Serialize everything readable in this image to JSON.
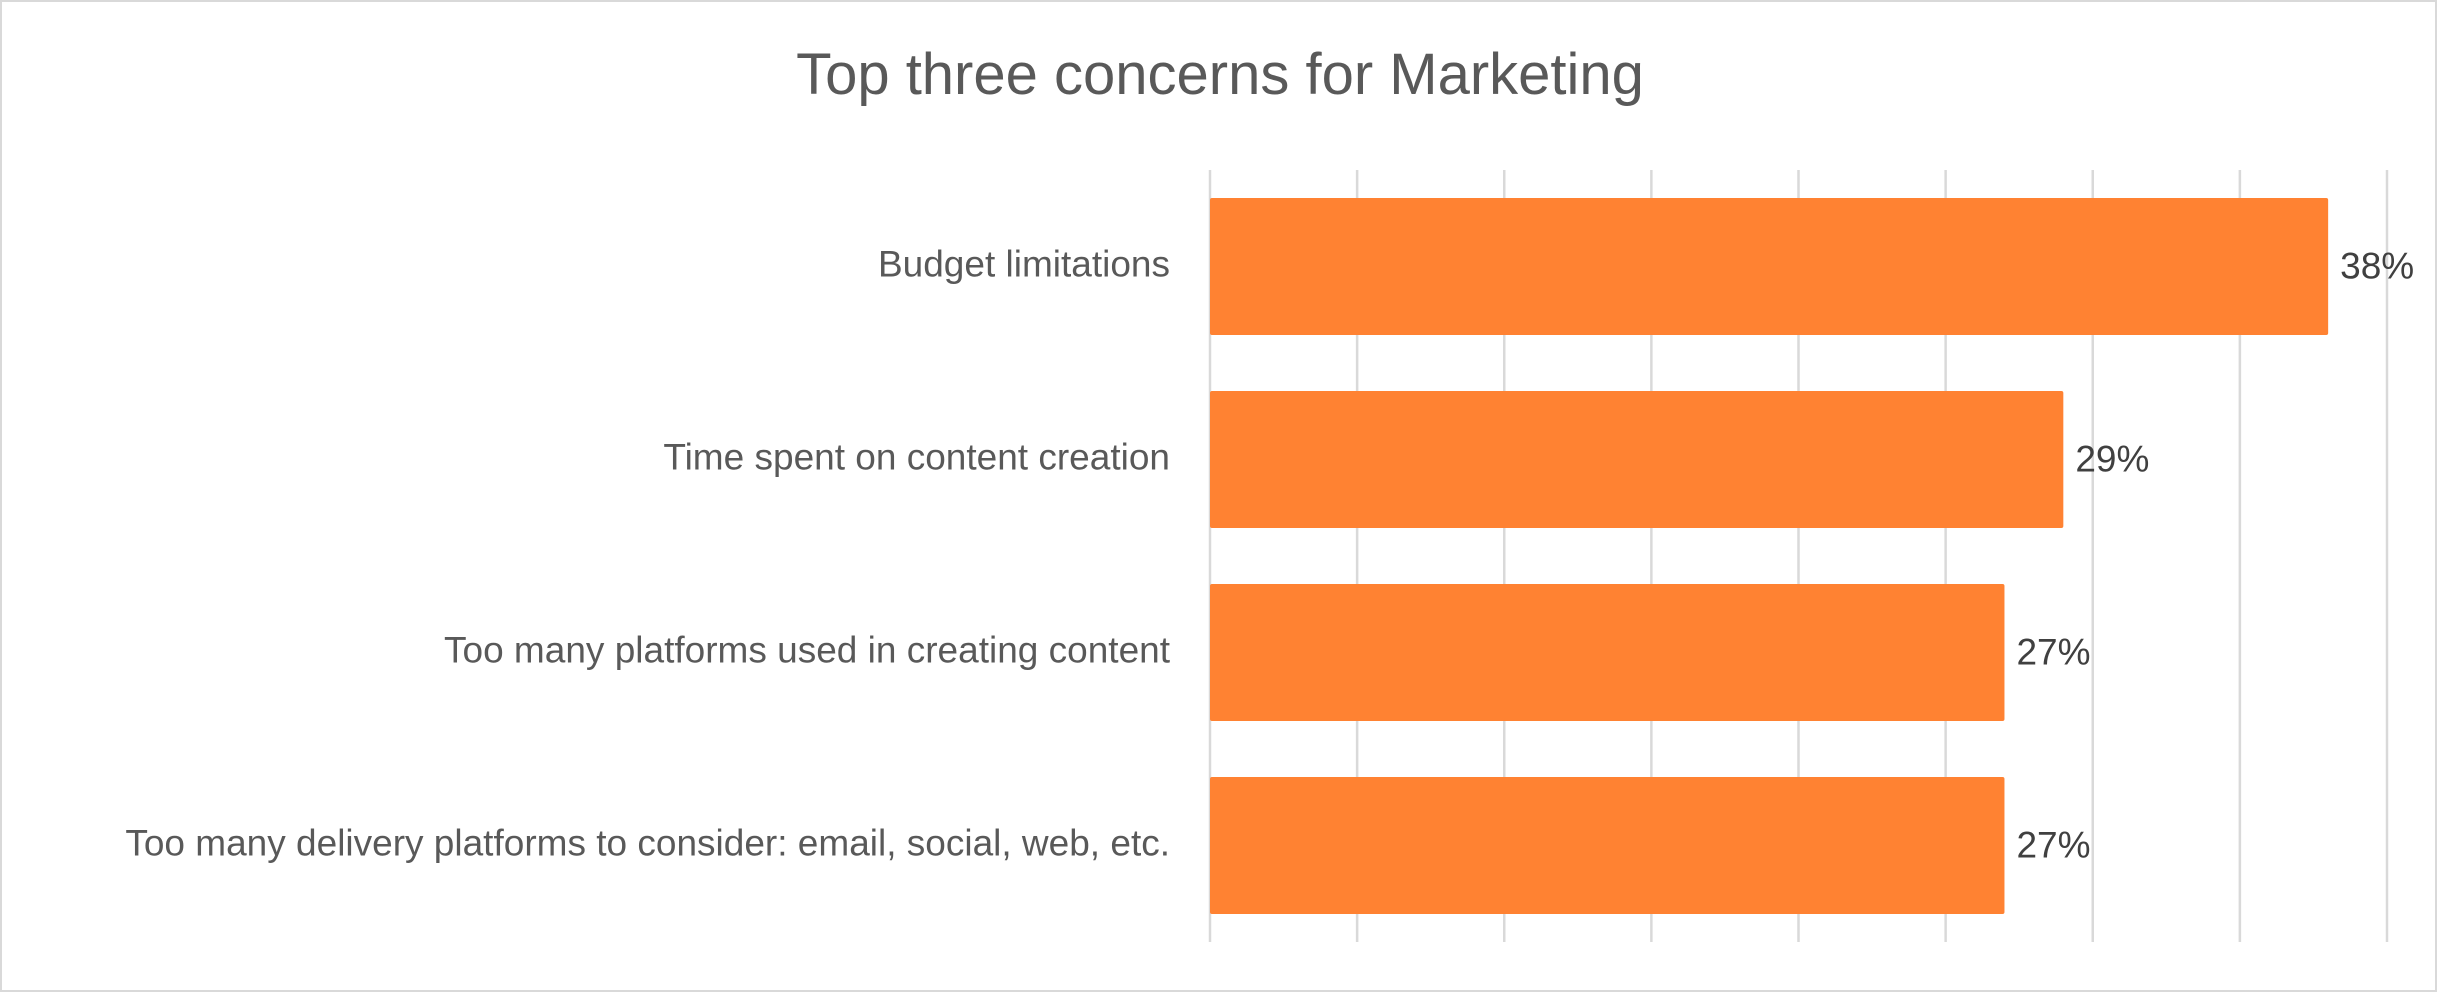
{
  "chart_data": {
    "type": "bar",
    "orientation": "horizontal",
    "title": "Top three concerns for Marketing",
    "categories": [
      "Budget limitations",
      "Time spent on content creation",
      "Too many platforms used in creating content",
      "Too many delivery platforms to consider: email, social, web, etc."
    ],
    "values": [
      38,
      29,
      27,
      27
    ],
    "value_labels": [
      "38%",
      "29%",
      "27%",
      "27%"
    ],
    "unit": "%",
    "xlim": [
      0,
      40
    ],
    "gridlines": "vertical",
    "legend": "none",
    "bar_color": "#FF8232"
  }
}
